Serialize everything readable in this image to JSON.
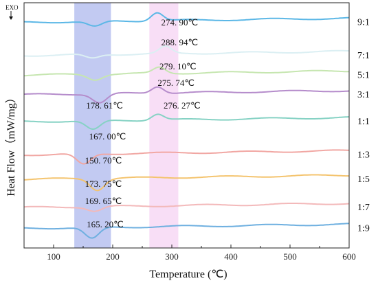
{
  "chart_data": {
    "type": "line",
    "xlabel": "Temperature (℃)",
    "ylabel": "Heat Flow（mW/mg）",
    "xlim": [
      50,
      600
    ],
    "x_ticks": [
      100,
      200,
      300,
      400,
      500,
      600
    ],
    "y_ticks_shown": false,
    "exo_marker": "EXO",
    "highlight_bands": [
      {
        "x": [
          135,
          197
        ],
        "color": "#8f9fe8"
      },
      {
        "x": [
          262,
          311
        ],
        "color": "#f2c3ef"
      }
    ],
    "series": [
      {
        "label": "9:1",
        "color": "#5bb7e6",
        "baseline": 0.92,
        "peaks": [
          [
            170,
            -0.35
          ],
          [
            275,
            0.55
          ]
        ]
      },
      {
        "label": "7:1",
        "color": "#dbeff3",
        "baseline": 0.785,
        "peaks": [
          [
            165,
            -0.25
          ],
          [
            289,
            0.45
          ]
        ]
      },
      {
        "label": "5:1",
        "color": "#c6e6b0",
        "baseline": 0.705,
        "peaks": [
          [
            170,
            -0.35
          ],
          [
            279,
            0.4
          ]
        ]
      },
      {
        "label": "3:1",
        "color": "#b58ccb",
        "baseline": 0.625,
        "peaks": [
          [
            178,
            -0.6
          ],
          [
            276,
            0.45
          ]
        ]
      },
      {
        "label": "1:1",
        "color": "#86d2c4",
        "baseline": 0.515,
        "peaks": [
          [
            167,
            -0.6
          ],
          [
            276,
            0.4
          ]
        ]
      },
      {
        "label": "1:3",
        "color": "#f1a7a3",
        "baseline": 0.38,
        "peaks": [
          [
            151,
            -0.7
          ]
        ]
      },
      {
        "label": "1:5",
        "color": "#f4c46f",
        "baseline": 0.28,
        "peaks": [
          [
            174,
            -0.75
          ]
        ]
      },
      {
        "label": "1:7",
        "color": "#f3b9ba",
        "baseline": 0.165,
        "peaks": [
          [
            170,
            -0.3
          ]
        ]
      },
      {
        "label": "1:9",
        "color": "#6fb0e0",
        "baseline": 0.08,
        "peaks": [
          [
            165,
            -0.75
          ]
        ]
      }
    ],
    "annotations": [
      {
        "text": "274. 90℃",
        "x": 282,
        "row": 0
      },
      {
        "text": "288. 94℃",
        "x": 282,
        "row": 1
      },
      {
        "text": "279. 10℃",
        "x": 279,
        "row": 2
      },
      {
        "text": "275. 74℃",
        "x": 276,
        "row": 3
      },
      {
        "text": "178. 61℃",
        "x": 155,
        "row": 4
      },
      {
        "text": "276. 27℃",
        "x": 286,
        "row": 4
      },
      {
        "text": "167. 00℃",
        "x": 160,
        "row": 5
      },
      {
        "text": "150. 70℃",
        "x": 153,
        "row": 6
      },
      {
        "text": "173. 75℃",
        "x": 153,
        "row": 7
      },
      {
        "text": "169. 65℃",
        "x": 153,
        "row": 8
      },
      {
        "text": "165. 20℃",
        "x": 156,
        "row": 9
      }
    ]
  }
}
